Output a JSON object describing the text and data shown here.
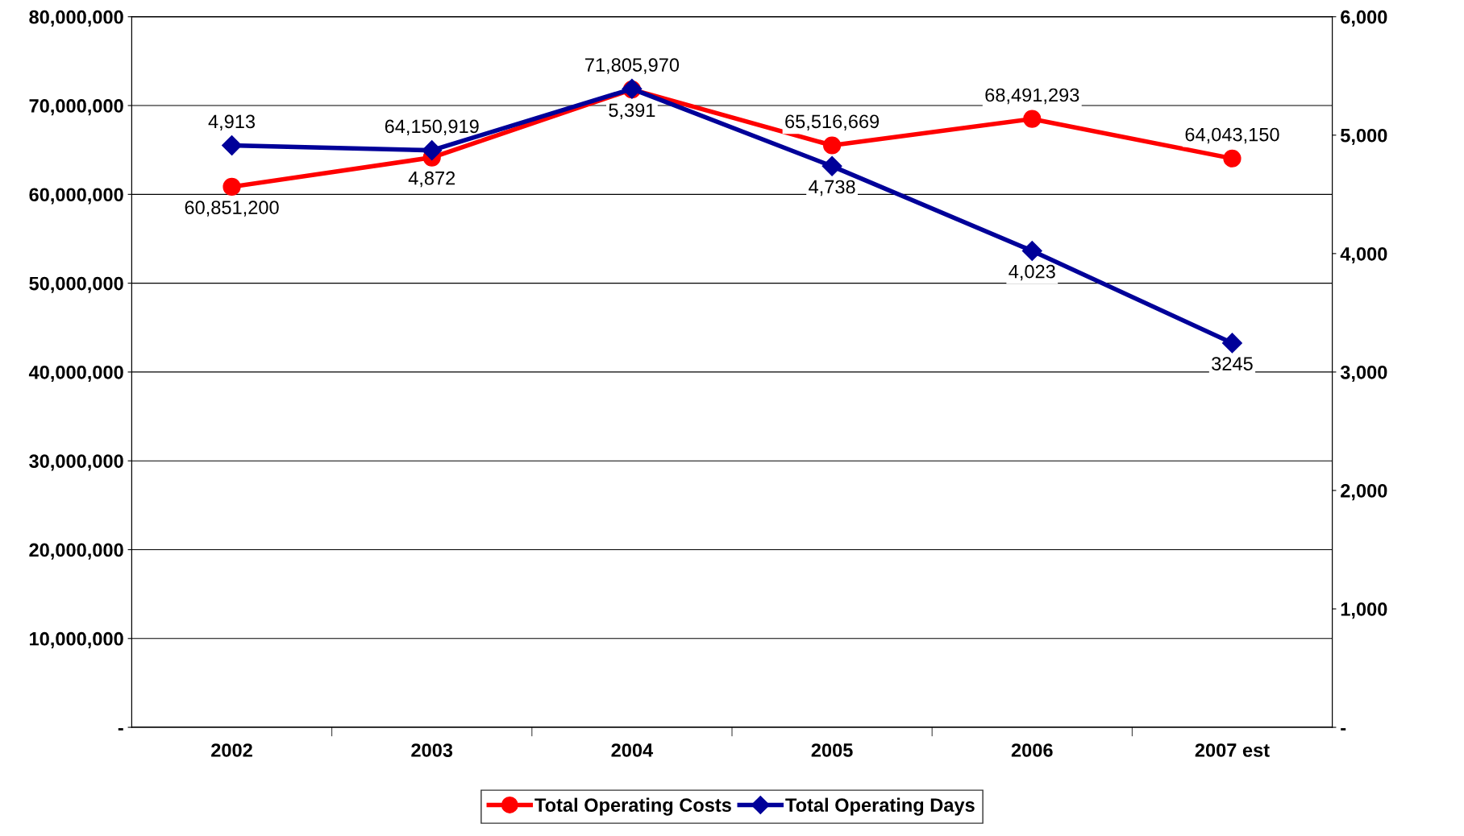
{
  "chart_data": {
    "type": "line",
    "categories": [
      "2002",
      "2003",
      "2004",
      "2005",
      "2006",
      "2007 est"
    ],
    "series": [
      {
        "name": "Total Operating Costs",
        "color": "#ff0000",
        "marker": "circle",
        "values": [
          60851200,
          64150919,
          71805970,
          65516669,
          68491293,
          64043150
        ],
        "value_labels": [
          "60,851,200",
          "64,150,919",
          "71,805,970",
          "65,516,669",
          "68,491,293",
          "64,043,150"
        ]
      },
      {
        "name": "Total Operating Days",
        "color": "#000099",
        "marker": "diamond",
        "axis": "y2",
        "values": [
          4913,
          4872,
          5391,
          4738,
          4023,
          3245
        ],
        "value_labels": [
          "4,913",
          "4,872",
          "5,391",
          "4,738",
          "4,023",
          "3245"
        ]
      }
    ],
    "ylim": [
      0,
      80000000
    ],
    "yticks": [
      {
        "value": 0,
        "label": "-"
      },
      {
        "value": 10000000,
        "label": "10,000,000"
      },
      {
        "value": 20000000,
        "label": "20,000,000"
      },
      {
        "value": 30000000,
        "label": "30,000,000"
      },
      {
        "value": 40000000,
        "label": "40,000,000"
      },
      {
        "value": 50000000,
        "label": "50,000,000"
      },
      {
        "value": 60000000,
        "label": "60,000,000"
      },
      {
        "value": 70000000,
        "label": "70,000,000"
      },
      {
        "value": 80000000,
        "label": "80,000,000"
      }
    ],
    "y2lim": [
      0,
      6000
    ],
    "y2ticks": [
      {
        "value": 0,
        "label": "-"
      },
      {
        "value": 1000,
        "label": "1,000"
      },
      {
        "value": 2000,
        "label": "2,000"
      },
      {
        "value": 3000,
        "label": "3,000"
      },
      {
        "value": 4000,
        "label": "4,000"
      },
      {
        "value": 5000,
        "label": "5,000"
      },
      {
        "value": 6000,
        "label": "6,000"
      }
    ],
    "grid": "y",
    "legend": "bottom",
    "line_style": "solid"
  }
}
